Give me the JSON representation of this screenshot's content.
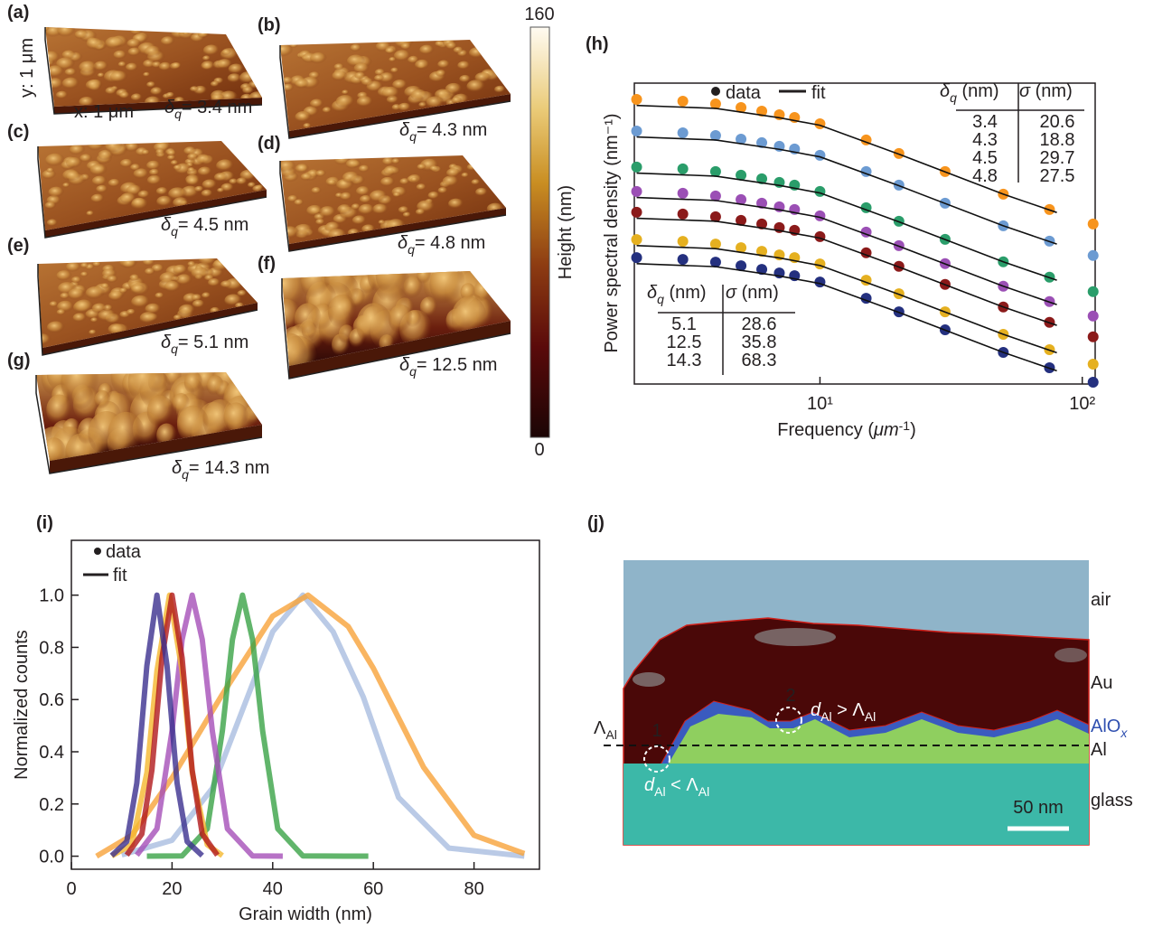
{
  "afm": {
    "x_axis": "x: 1 μm",
    "y_axis": "y: 1 μm",
    "symbol": "δ",
    "sub": "q",
    "panels": [
      {
        "label": "(a)",
        "value": "= 3.4 nm"
      },
      {
        "label": "(b)",
        "value": "= 4.3 nm"
      },
      {
        "label": "(c)",
        "value": "= 4.5 nm"
      },
      {
        "label": "(d)",
        "value": "= 4.8 nm"
      },
      {
        "label": "(e)",
        "value": "= 5.1 nm"
      },
      {
        "label": "(f)",
        "value": "= 12.5 nm"
      },
      {
        "label": "(g)",
        "value": "= 14.3 nm"
      }
    ]
  },
  "colorbar": {
    "title": "Height (nm)",
    "ylim": [
      0,
      160
    ],
    "yticks": [
      0,
      160
    ]
  },
  "chart_data": [
    {
      "type": "line",
      "label": "(h)",
      "xlabel": {
        "text": "Frequency (",
        "unit": "μm",
        "sup": "-1",
        "close": ")"
      },
      "ylabel": "Power spectral density (nm⁻¹)",
      "log_x": true,
      "xlim": [
        1.96,
        112
      ],
      "ylim": [
        0,
        10
      ],
      "xticks": [
        {
          "value": 10,
          "label": "10¹"
        },
        {
          "value": 100,
          "label": "10²"
        }
      ],
      "legend": [
        "data",
        "fit"
      ],
      "x": [
        2,
        3,
        4,
        5,
        6,
        7,
        8,
        10,
        15,
        20,
        30,
        50,
        75,
        110
      ],
      "fit_x": [
        2,
        4,
        7,
        10,
        20,
        50,
        80
      ],
      "series": [
        {
          "color": "#f7941d",
          "values": [
            9.46,
            9.4,
            9.31,
            9.19,
            9.07,
            8.95,
            8.86,
            8.65,
            8.11,
            7.66,
            7.06,
            6.31,
            5.8,
            5.32
          ],
          "fit": [
            9.26,
            9.16,
            8.85,
            8.6,
            7.64,
            6.31,
            5.7
          ]
        },
        {
          "color": "#6c9bd2",
          "values": [
            8.41,
            8.35,
            8.26,
            8.14,
            8.02,
            7.9,
            7.81,
            7.6,
            7.06,
            6.61,
            6.01,
            5.26,
            4.75,
            4.27
          ],
          "fit": [
            8.21,
            8.11,
            7.8,
            7.55,
            6.59,
            5.26,
            4.65
          ]
        },
        {
          "color": "#2a9d6a",
          "values": [
            7.21,
            7.15,
            7.06,
            6.94,
            6.82,
            6.7,
            6.61,
            6.4,
            5.86,
            5.41,
            4.81,
            4.06,
            3.55,
            3.07
          ],
          "fit": [
            7.01,
            6.91,
            6.6,
            6.35,
            5.39,
            4.06,
            3.45
          ]
        },
        {
          "color": "#9b4fb5",
          "values": [
            6.4,
            6.34,
            6.25,
            6.13,
            6.01,
            5.89,
            5.8,
            5.59,
            5.05,
            4.6,
            4.0,
            3.25,
            2.74,
            2.26
          ],
          "fit": [
            6.2,
            6.1,
            5.79,
            5.54,
            4.58,
            3.25,
            2.64
          ]
        },
        {
          "color": "#8b1a1a",
          "values": [
            5.71,
            5.65,
            5.56,
            5.44,
            5.32,
            5.2,
            5.11,
            4.9,
            4.36,
            3.91,
            3.31,
            2.56,
            2.05,
            1.57
          ],
          "fit": [
            5.51,
            5.41,
            5.1,
            4.85,
            3.89,
            2.56,
            1.95
          ]
        },
        {
          "color": "#e5b020",
          "values": [
            4.8,
            4.74,
            4.65,
            4.53,
            4.41,
            4.29,
            4.2,
            3.99,
            3.45,
            3.0,
            2.4,
            1.65,
            1.14,
            0.66
          ],
          "fit": [
            4.6,
            4.5,
            4.19,
            3.94,
            2.98,
            1.65,
            1.04
          ]
        },
        {
          "color": "#24307f",
          "values": [
            4.2,
            4.14,
            4.05,
            3.93,
            3.81,
            3.69,
            3.6,
            3.39,
            2.85,
            2.4,
            1.8,
            1.05,
            0.54,
            0.06
          ],
          "fit": [
            4.0,
            3.9,
            3.59,
            3.34,
            2.38,
            1.05,
            0.44
          ]
        }
      ],
      "tables": [
        {
          "headers": [
            {
              "symbol": "δ",
              "sub": "q",
              "unit": " (nm)"
            },
            {
              "symbol": "σ",
              "unit": " (nm)"
            }
          ],
          "rows": [
            {
              "color": "#25307f",
              "cells": [
                3.4,
                20.6
              ]
            },
            {
              "color": "#b39a6a",
              "cells": [
                4.3,
                18.8
              ]
            },
            {
              "color": "#8b1a1a",
              "cells": [
                4.5,
                29.7
              ]
            },
            {
              "color": "#8c7fc7",
              "cells": [
                4.8,
                27.5
              ]
            }
          ]
        },
        {
          "headers": [
            {
              "symbol": "δ",
              "sub": "q",
              "unit": " (nm)"
            },
            {
              "symbol": "σ",
              "unit": " (nm)"
            }
          ],
          "rows": [
            {
              "color": "#2e9a7a",
              "cells": [
                5.1,
                28.6
              ]
            },
            {
              "color": "#f0a020",
              "cells": [
                12.5,
                35.8
              ]
            },
            {
              "color": "#5b8fd0",
              "cells": [
                14.3,
                68.3
              ]
            }
          ]
        }
      ]
    },
    {
      "type": "line",
      "label": "(i)",
      "xlabel": "Grain width (nm)",
      "ylabel": "Normalized counts",
      "xlim": [
        0,
        93
      ],
      "ylim": [
        -0.05,
        1.21
      ],
      "xticks": [
        0,
        20,
        40,
        60,
        80
      ],
      "yticks": [
        {
          "value": 0,
          "label": "0.0"
        },
        0.2,
        0.4,
        0.6,
        0.8,
        {
          "value": 1,
          "label": "1.0"
        }
      ],
      "legend": [
        "data",
        "fit"
      ],
      "series": [
        {
          "color": "#a9bde0",
          "x": [
            10,
            20,
            28,
            35,
            40,
            46,
            52,
            58,
            65,
            75,
            90
          ],
          "values": [
            0.005,
            0.061,
            0.26,
            0.61,
            0.86,
            1,
            0.86,
            0.61,
            0.225,
            0.031,
            0
          ]
        },
        {
          "color": "#f7a23a",
          "x": [
            5,
            12,
            20,
            30,
            40,
            47,
            55,
            60,
            70,
            80,
            90
          ],
          "values": [
            0,
            0.08,
            0.3,
            0.62,
            0.92,
            1,
            0.88,
            0.72,
            0.34,
            0.08,
            0.01
          ]
        },
        {
          "color": "#3aa346",
          "x": [
            15,
            22,
            27,
            30,
            32,
            34,
            36,
            38,
            41,
            46,
            59
          ],
          "values": [
            0,
            0.001,
            0.105,
            0.48,
            0.83,
            1,
            0.83,
            0.48,
            0.105,
            0.001,
            0
          ]
        },
        {
          "color": "#a54fb8",
          "x": [
            13,
            17,
            20,
            22,
            24,
            26,
            28,
            31,
            36,
            42
          ],
          "values": [
            0.004,
            0.105,
            0.48,
            0.83,
            1,
            0.83,
            0.48,
            0.105,
            0.001,
            0
          ]
        },
        {
          "color": "#f5b82e",
          "x": [
            8,
            12,
            15,
            17,
            19.5,
            22,
            24,
            27,
            30
          ],
          "values": [
            0.001,
            0.044,
            0.32,
            0.71,
            1,
            0.71,
            0.32,
            0.044,
            0.002
          ]
        },
        {
          "color": "#b0181c",
          "x": [
            11,
            14,
            16,
            18,
            20,
            22,
            24,
            26,
            29
          ],
          "values": [
            0.004,
            0.085,
            0.33,
            0.76,
            1,
            0.76,
            0.33,
            0.085,
            0.004
          ]
        },
        {
          "color": "#3b2f8f",
          "x": [
            8,
            11,
            13,
            15,
            17,
            19,
            21,
            23,
            26
          ],
          "values": [
            0.002,
            0.056,
            0.28,
            0.73,
            1,
            0.73,
            0.28,
            0.056,
            0.002
          ]
        }
      ]
    }
  ],
  "tem": {
    "label": "(j)",
    "air": "air",
    "au": "Au",
    "alox": {
      "main": "AlO",
      "sub": "x"
    },
    "al": "Al",
    "glass": "glass",
    "lambda": {
      "main": "Λ",
      "sub": "Al"
    },
    "markers": [
      1,
      2
    ],
    "d_less": {
      "d": "d",
      "sub": "Al",
      "rel": " < ",
      "lam": "Λ",
      "lam_sub": "Al"
    },
    "d_greater": {
      "d": "d",
      "sub": "Al",
      "rel": " > ",
      "lam": "Λ",
      "lam_sub": "Al"
    },
    "scale_bar": "50 nm"
  }
}
